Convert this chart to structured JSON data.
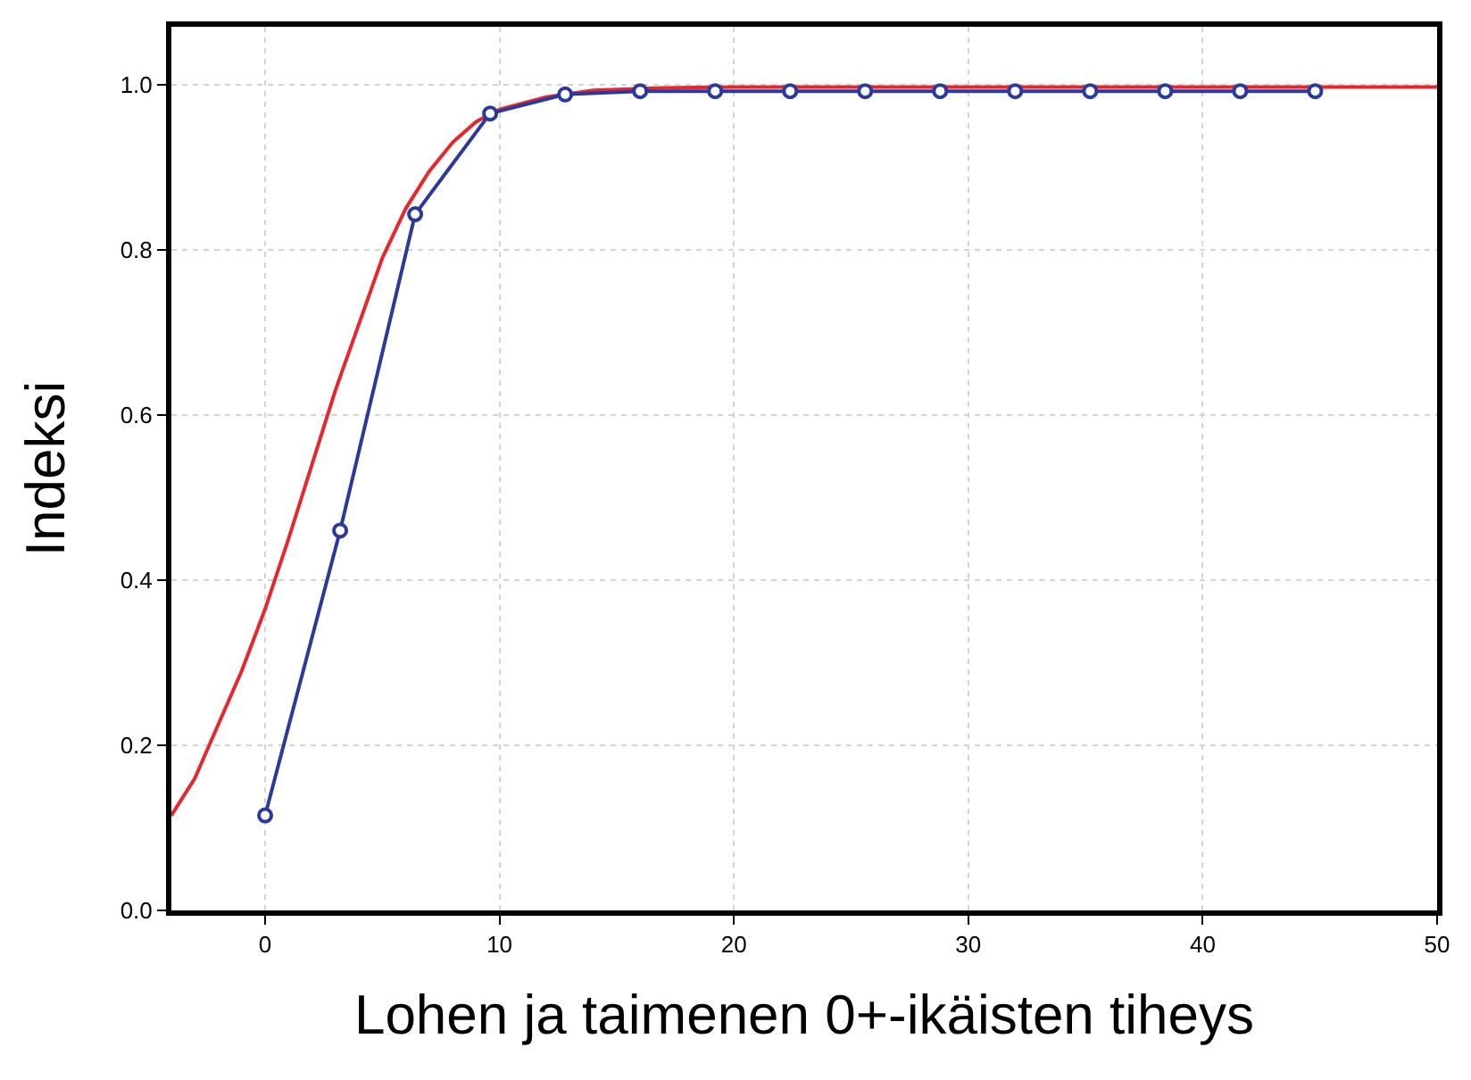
{
  "chart_data": {
    "type": "line",
    "xlabel": "Lohen ja taimenen 0+-ikäisten tiheys",
    "ylabel": "Indeksi",
    "xlim": [
      -4,
      50
    ],
    "xticks": [
      0,
      10,
      20,
      30,
      40,
      50
    ],
    "ylim": [
      0,
      1.07
    ],
    "yticks": [
      {
        "value": 0,
        "label": "0.0"
      },
      {
        "value": 0.2,
        "label": "0.2"
      },
      {
        "value": 0.4,
        "label": "0.4"
      },
      {
        "value": 0.6,
        "label": "0.6"
      },
      {
        "value": 0.8,
        "label": "0.8"
      },
      {
        "value": 1,
        "label": "1.0"
      }
    ],
    "grid": true,
    "series": [
      {
        "color": "#e8262b",
        "marker": "none",
        "x": [
          -4,
          -3,
          -2,
          -1,
          0,
          1,
          2,
          3,
          4,
          5,
          6,
          7,
          8,
          9,
          10,
          12,
          14,
          17,
          20,
          50
        ],
        "values": [
          0.115,
          0.16,
          0.225,
          0.29,
          0.365,
          0.45,
          0.54,
          0.63,
          0.71,
          0.79,
          0.85,
          0.895,
          0.93,
          0.955,
          0.97,
          0.985,
          0.993,
          0.996,
          0.997,
          0.997
        ]
      },
      {
        "color": "#2b3a9a",
        "marker": "circle",
        "x": [
          0,
          3.2,
          6.4,
          9.6,
          12.8,
          16,
          19.2,
          22.4,
          25.6,
          28.8,
          32,
          35.2,
          38.4,
          41.6,
          44.8
        ],
        "values": [
          0.115,
          0.46,
          0.843,
          0.965,
          0.988,
          0.992,
          0.992,
          0.992,
          0.992,
          0.992,
          0.992,
          0.992,
          0.992,
          0.992,
          0.992
        ]
      }
    ]
  }
}
